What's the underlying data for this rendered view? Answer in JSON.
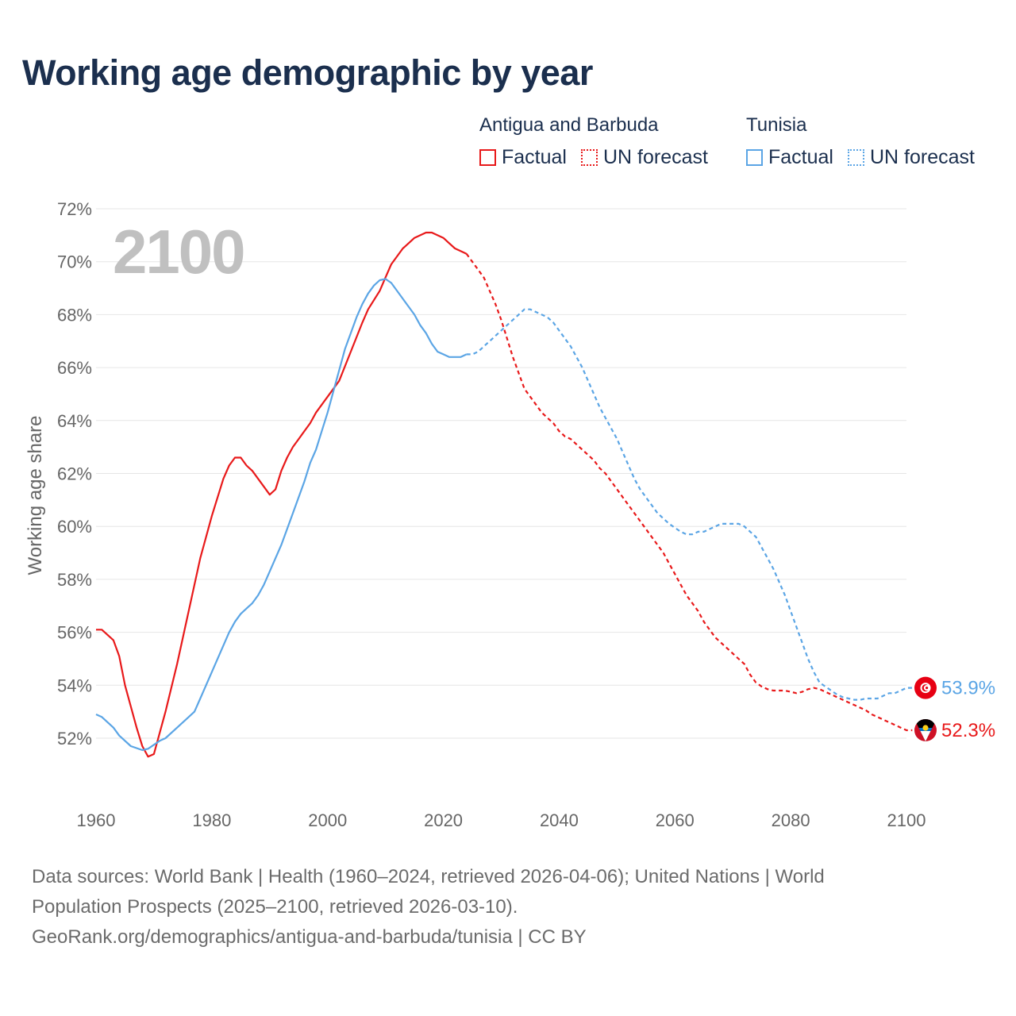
{
  "title": "Working age demographic by year",
  "big_year": "2100",
  "legend": {
    "groups": [
      {
        "name": "Antigua and Barbuda",
        "color": "#e8191a",
        "factual_label": "Factual",
        "forecast_label": "UN forecast"
      },
      {
        "name": "Tunisia",
        "color": "#5ba5e5",
        "factual_label": "Factual",
        "forecast_label": "UN forecast"
      }
    ]
  },
  "source": {
    "line1": "Data sources: World Bank | Health (1960–2024, retrieved 2026-04-06); United Nations | World",
    "line2": "Population Prospects (2025–2100, retrieved 2026-03-10).",
    "line3": "GeoRank.org/demographics/antigua-and-barbuda/tunisia | CC BY"
  },
  "chart_data": {
    "type": "line",
    "title": "Working age demographic by year",
    "xlabel": "",
    "ylabel": "Working age share",
    "xlim": [
      1960,
      2100
    ],
    "ylim": [
      50,
      72
    ],
    "x_ticks": [
      "1960",
      "1980",
      "2000",
      "2020",
      "2040",
      "2060",
      "2080",
      "2100"
    ],
    "y_ticks": [
      "52%",
      "54%",
      "56%",
      "58%",
      "60%",
      "62%",
      "64%",
      "66%",
      "68%",
      "70%",
      "72%"
    ],
    "forecast_start": 2024,
    "series": [
      {
        "name": "Antigua and Barbuda",
        "color": "#e8191a",
        "end_label": "52.3%",
        "icon": "antigua-and-barbuda-flag-icon",
        "points": [
          [
            1960,
            56.1
          ],
          [
            1961,
            56.1
          ],
          [
            1963,
            55.7
          ],
          [
            1964,
            55.1
          ],
          [
            1965,
            54.0
          ],
          [
            1966,
            53.2
          ],
          [
            1967,
            52.4
          ],
          [
            1968,
            51.7
          ],
          [
            1969,
            51.3
          ],
          [
            1970,
            51.4
          ],
          [
            1971,
            52.2
          ],
          [
            1972,
            53.0
          ],
          [
            1974,
            54.8
          ],
          [
            1976,
            56.8
          ],
          [
            1978,
            58.8
          ],
          [
            1980,
            60.4
          ],
          [
            1982,
            61.8
          ],
          [
            1983,
            62.3
          ],
          [
            1984,
            62.6
          ],
          [
            1985,
            62.6
          ],
          [
            1986,
            62.3
          ],
          [
            1987,
            62.1
          ],
          [
            1988,
            61.8
          ],
          [
            1989,
            61.5
          ],
          [
            1990,
            61.2
          ],
          [
            1991,
            61.4
          ],
          [
            1992,
            62.1
          ],
          [
            1993,
            62.6
          ],
          [
            1994,
            63.0
          ],
          [
            1995,
            63.3
          ],
          [
            1996,
            63.6
          ],
          [
            1997,
            63.9
          ],
          [
            1998,
            64.3
          ],
          [
            1999,
            64.6
          ],
          [
            2000,
            64.9
          ],
          [
            2002,
            65.5
          ],
          [
            2004,
            66.6
          ],
          [
            2006,
            67.7
          ],
          [
            2007,
            68.2
          ],
          [
            2009,
            68.9
          ],
          [
            2010,
            69.4
          ],
          [
            2011,
            69.9
          ],
          [
            2012,
            70.2
          ],
          [
            2013,
            70.5
          ],
          [
            2014,
            70.7
          ],
          [
            2015,
            70.9
          ],
          [
            2016,
            71.0
          ],
          [
            2017,
            71.1
          ],
          [
            2018,
            71.1
          ],
          [
            2019,
            71.0
          ],
          [
            2020,
            70.9
          ],
          [
            2021,
            70.7
          ],
          [
            2022,
            70.5
          ],
          [
            2023,
            70.4
          ],
          [
            2024,
            70.3
          ],
          [
            2025,
            70.0
          ],
          [
            2026,
            69.7
          ],
          [
            2027,
            69.4
          ],
          [
            2028,
            68.9
          ],
          [
            2029,
            68.4
          ],
          [
            2030,
            67.8
          ],
          [
            2031,
            67.1
          ],
          [
            2032,
            66.4
          ],
          [
            2033,
            65.8
          ],
          [
            2034,
            65.2
          ],
          [
            2035,
            64.9
          ],
          [
            2036,
            64.6
          ],
          [
            2037,
            64.3
          ],
          [
            2038,
            64.1
          ],
          [
            2039,
            63.9
          ],
          [
            2040,
            63.6
          ],
          [
            2041,
            63.4
          ],
          [
            2042,
            63.3
          ],
          [
            2043,
            63.1
          ],
          [
            2044,
            62.9
          ],
          [
            2045,
            62.7
          ],
          [
            2046,
            62.5
          ],
          [
            2047,
            62.2
          ],
          [
            2048,
            62.0
          ],
          [
            2049,
            61.7
          ],
          [
            2050,
            61.4
          ],
          [
            2051,
            61.1
          ],
          [
            2052,
            60.8
          ],
          [
            2053,
            60.5
          ],
          [
            2054,
            60.2
          ],
          [
            2055,
            59.9
          ],
          [
            2056,
            59.6
          ],
          [
            2057,
            59.3
          ],
          [
            2058,
            59.0
          ],
          [
            2059,
            58.6
          ],
          [
            2060,
            58.2
          ],
          [
            2061,
            57.8
          ],
          [
            2062,
            57.4
          ],
          [
            2063,
            57.1
          ],
          [
            2064,
            56.8
          ],
          [
            2065,
            56.4
          ],
          [
            2066,
            56.1
          ],
          [
            2067,
            55.8
          ],
          [
            2068,
            55.6
          ],
          [
            2069,
            55.4
          ],
          [
            2070,
            55.2
          ],
          [
            2071,
            55.0
          ],
          [
            2072,
            54.8
          ],
          [
            2073,
            54.4
          ],
          [
            2074,
            54.1
          ],
          [
            2075,
            53.95
          ],
          [
            2076,
            53.85
          ],
          [
            2077,
            53.8
          ],
          [
            2078,
            53.8
          ],
          [
            2079,
            53.8
          ],
          [
            2080,
            53.75
          ],
          [
            2081,
            53.7
          ],
          [
            2082,
            53.75
          ],
          [
            2083,
            53.85
          ],
          [
            2084,
            53.9
          ],
          [
            2085,
            53.85
          ],
          [
            2086,
            53.75
          ],
          [
            2087,
            53.65
          ],
          [
            2088,
            53.55
          ],
          [
            2089,
            53.45
          ],
          [
            2090,
            53.35
          ],
          [
            2091,
            53.25
          ],
          [
            2092,
            53.15
          ],
          [
            2093,
            53.05
          ],
          [
            2094,
            52.9
          ],
          [
            2095,
            52.8
          ],
          [
            2096,
            52.7
          ],
          [
            2097,
            52.6
          ],
          [
            2098,
            52.5
          ],
          [
            2099,
            52.4
          ],
          [
            2100,
            52.3
          ],
          [
            2101,
            52.3
          ]
        ]
      },
      {
        "name": "Tunisia",
        "color": "#5ba5e5",
        "end_label": "53.9%",
        "icon": "tunisia-flag-icon",
        "points": [
          [
            1960,
            52.9
          ],
          [
            1961,
            52.8
          ],
          [
            1963,
            52.4
          ],
          [
            1964,
            52.1
          ],
          [
            1966,
            51.7
          ],
          [
            1968,
            51.55
          ],
          [
            1969,
            51.6
          ],
          [
            1970,
            51.75
          ],
          [
            1971,
            51.9
          ],
          [
            1972,
            52.0
          ],
          [
            1974,
            52.4
          ],
          [
            1976,
            52.8
          ],
          [
            1977,
            53.0
          ],
          [
            1978,
            53.5
          ],
          [
            1980,
            54.5
          ],
          [
            1982,
            55.5
          ],
          [
            1983,
            56.0
          ],
          [
            1984,
            56.4
          ],
          [
            1985,
            56.7
          ],
          [
            1986,
            56.9
          ],
          [
            1987,
            57.1
          ],
          [
            1988,
            57.4
          ],
          [
            1989,
            57.8
          ],
          [
            1990,
            58.3
          ],
          [
            1991,
            58.8
          ],
          [
            1992,
            59.3
          ],
          [
            1994,
            60.5
          ],
          [
            1996,
            61.7
          ],
          [
            1997,
            62.4
          ],
          [
            1998,
            62.9
          ],
          [
            1999,
            63.6
          ],
          [
            2000,
            64.3
          ],
          [
            2001,
            65.1
          ],
          [
            2002,
            65.9
          ],
          [
            2003,
            66.7
          ],
          [
            2004,
            67.3
          ],
          [
            2005,
            67.9
          ],
          [
            2006,
            68.4
          ],
          [
            2007,
            68.8
          ],
          [
            2008,
            69.1
          ],
          [
            2009,
            69.3
          ],
          [
            2010,
            69.35
          ],
          [
            2011,
            69.2
          ],
          [
            2012,
            68.9
          ],
          [
            2013,
            68.6
          ],
          [
            2014,
            68.3
          ],
          [
            2015,
            68.0
          ],
          [
            2016,
            67.6
          ],
          [
            2017,
            67.3
          ],
          [
            2018,
            66.9
          ],
          [
            2019,
            66.6
          ],
          [
            2020,
            66.5
          ],
          [
            2021,
            66.4
          ],
          [
            2022,
            66.4
          ],
          [
            2023,
            66.4
          ],
          [
            2024,
            66.5
          ],
          [
            2025,
            66.5
          ],
          [
            2026,
            66.6
          ],
          [
            2027,
            66.8
          ],
          [
            2028,
            67.0
          ],
          [
            2029,
            67.2
          ],
          [
            2030,
            67.4
          ],
          [
            2031,
            67.6
          ],
          [
            2032,
            67.8
          ],
          [
            2033,
            68.0
          ],
          [
            2034,
            68.2
          ],
          [
            2035,
            68.2
          ],
          [
            2036,
            68.1
          ],
          [
            2037,
            68.0
          ],
          [
            2038,
            67.9
          ],
          [
            2039,
            67.7
          ],
          [
            2040,
            67.4
          ],
          [
            2041,
            67.1
          ],
          [
            2042,
            66.8
          ],
          [
            2043,
            66.4
          ],
          [
            2044,
            66.0
          ],
          [
            2045,
            65.5
          ],
          [
            2046,
            65.0
          ],
          [
            2047,
            64.5
          ],
          [
            2048,
            64.1
          ],
          [
            2049,
            63.7
          ],
          [
            2050,
            63.3
          ],
          [
            2051,
            62.8
          ],
          [
            2052,
            62.3
          ],
          [
            2053,
            61.8
          ],
          [
            2054,
            61.4
          ],
          [
            2055,
            61.1
          ],
          [
            2056,
            60.8
          ],
          [
            2057,
            60.5
          ],
          [
            2058,
            60.3
          ],
          [
            2059,
            60.1
          ],
          [
            2060,
            59.95
          ],
          [
            2061,
            59.8
          ],
          [
            2062,
            59.7
          ],
          [
            2063,
            59.7
          ],
          [
            2064,
            59.8
          ],
          [
            2065,
            59.8
          ],
          [
            2066,
            59.9
          ],
          [
            2067,
            60.0
          ],
          [
            2068,
            60.1
          ],
          [
            2069,
            60.1
          ],
          [
            2070,
            60.1
          ],
          [
            2071,
            60.1
          ],
          [
            2072,
            60.0
          ],
          [
            2073,
            59.8
          ],
          [
            2074,
            59.6
          ],
          [
            2075,
            59.2
          ],
          [
            2076,
            58.8
          ],
          [
            2077,
            58.4
          ],
          [
            2078,
            57.9
          ],
          [
            2079,
            57.4
          ],
          [
            2080,
            56.8
          ],
          [
            2081,
            56.2
          ],
          [
            2082,
            55.6
          ],
          [
            2083,
            55.0
          ],
          [
            2084,
            54.5
          ],
          [
            2085,
            54.1
          ],
          [
            2086,
            53.95
          ],
          [
            2087,
            53.8
          ],
          [
            2088,
            53.65
          ],
          [
            2089,
            53.55
          ],
          [
            2090,
            53.5
          ],
          [
            2091,
            53.45
          ],
          [
            2092,
            53.45
          ],
          [
            2093,
            53.5
          ],
          [
            2094,
            53.5
          ],
          [
            2095,
            53.5
          ],
          [
            2096,
            53.6
          ],
          [
            2097,
            53.7
          ],
          [
            2098,
            53.7
          ],
          [
            2099,
            53.8
          ],
          [
            2100,
            53.9
          ],
          [
            2101,
            53.9
          ]
        ]
      }
    ]
  }
}
